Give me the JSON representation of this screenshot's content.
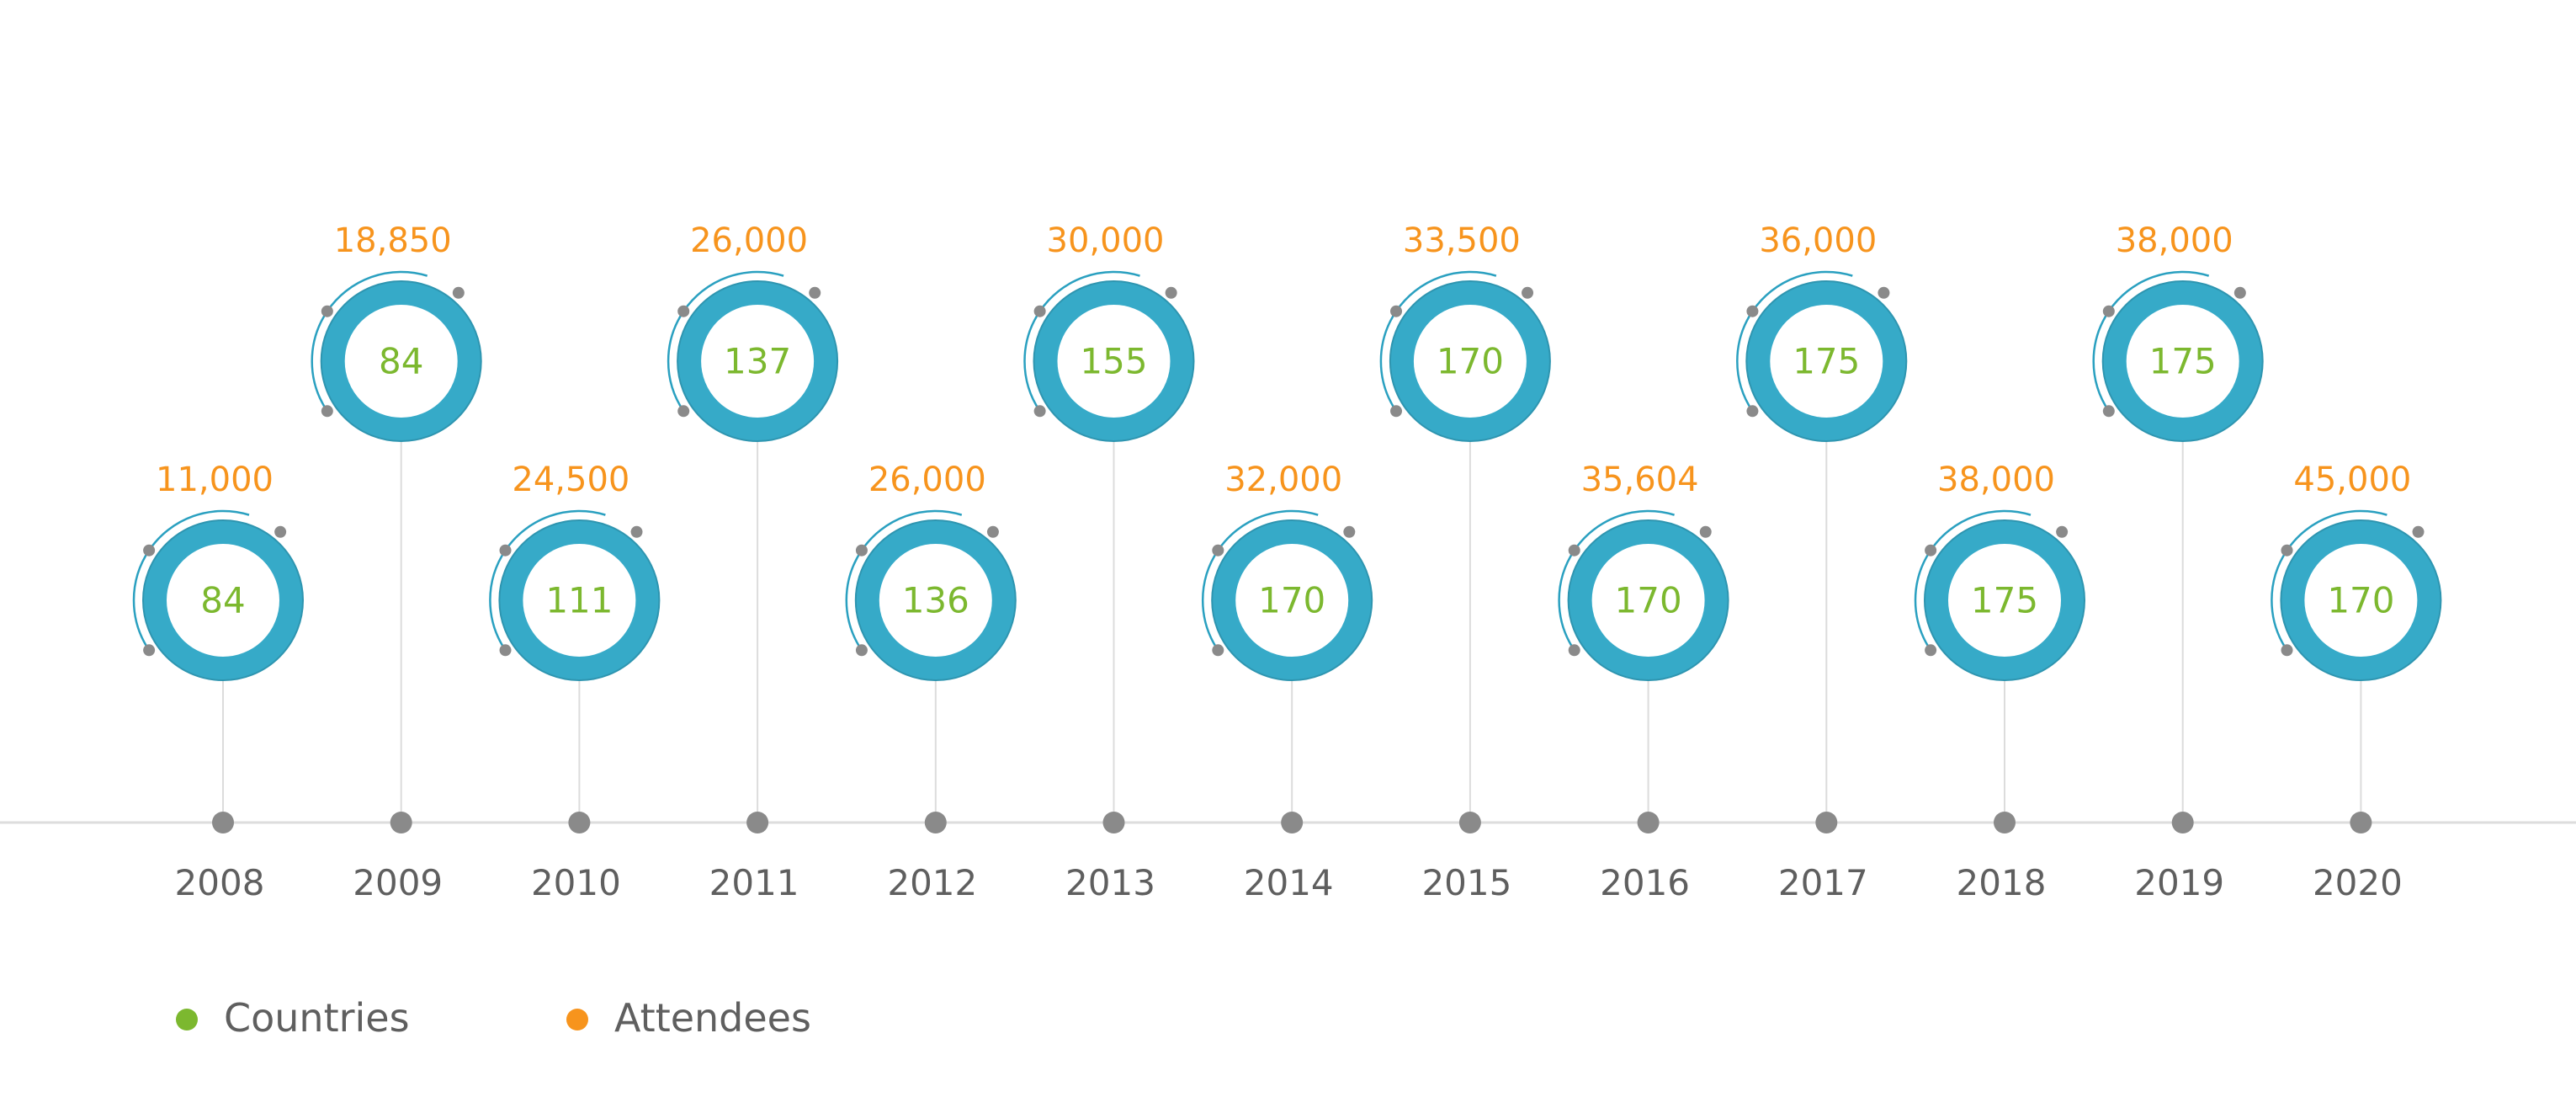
{
  "chart_data": {
    "type": "timeline",
    "categories": [
      "2008",
      "2009",
      "2010",
      "2011",
      "2012",
      "2013",
      "2014",
      "2015",
      "2016",
      "2017",
      "2018",
      "2019",
      "2020"
    ],
    "series": [
      {
        "name": "Countries",
        "values": [
          84,
          84,
          111,
          137,
          136,
          155,
          170,
          170,
          170,
          175,
          175,
          175,
          170
        ]
      },
      {
        "name": "Attendees",
        "values": [
          11000,
          18850,
          24500,
          26000,
          26000,
          30000,
          32000,
          33500,
          35604,
          36000,
          38000,
          38000,
          45000
        ],
        "labels": [
          "11,000",
          "18,850",
          "24,500",
          "26,000",
          "26,000",
          "30,000",
          "32,000",
          "33,500",
          "35,604",
          "36,000",
          "38,000",
          "38,000",
          "45,000"
        ]
      }
    ],
    "legend": {
      "placement": "bottom-left",
      "items": [
        {
          "label": "Countries",
          "color": "#7cb82f"
        },
        {
          "label": "Attendees",
          "color": "#f7941d"
        }
      ]
    }
  },
  "colors": {
    "ring": "#36aac8",
    "ring_edge": "#2e95b0",
    "arc": "#2aa0c0",
    "dot": "#8a8a8a",
    "connector": "#dcdcdc",
    "axis": "#dddddd",
    "countries_text": "#7cb82f",
    "attendees_text": "#f7941d",
    "year_text": "#5f5f5f",
    "legend_text": "#5f5f5f"
  }
}
